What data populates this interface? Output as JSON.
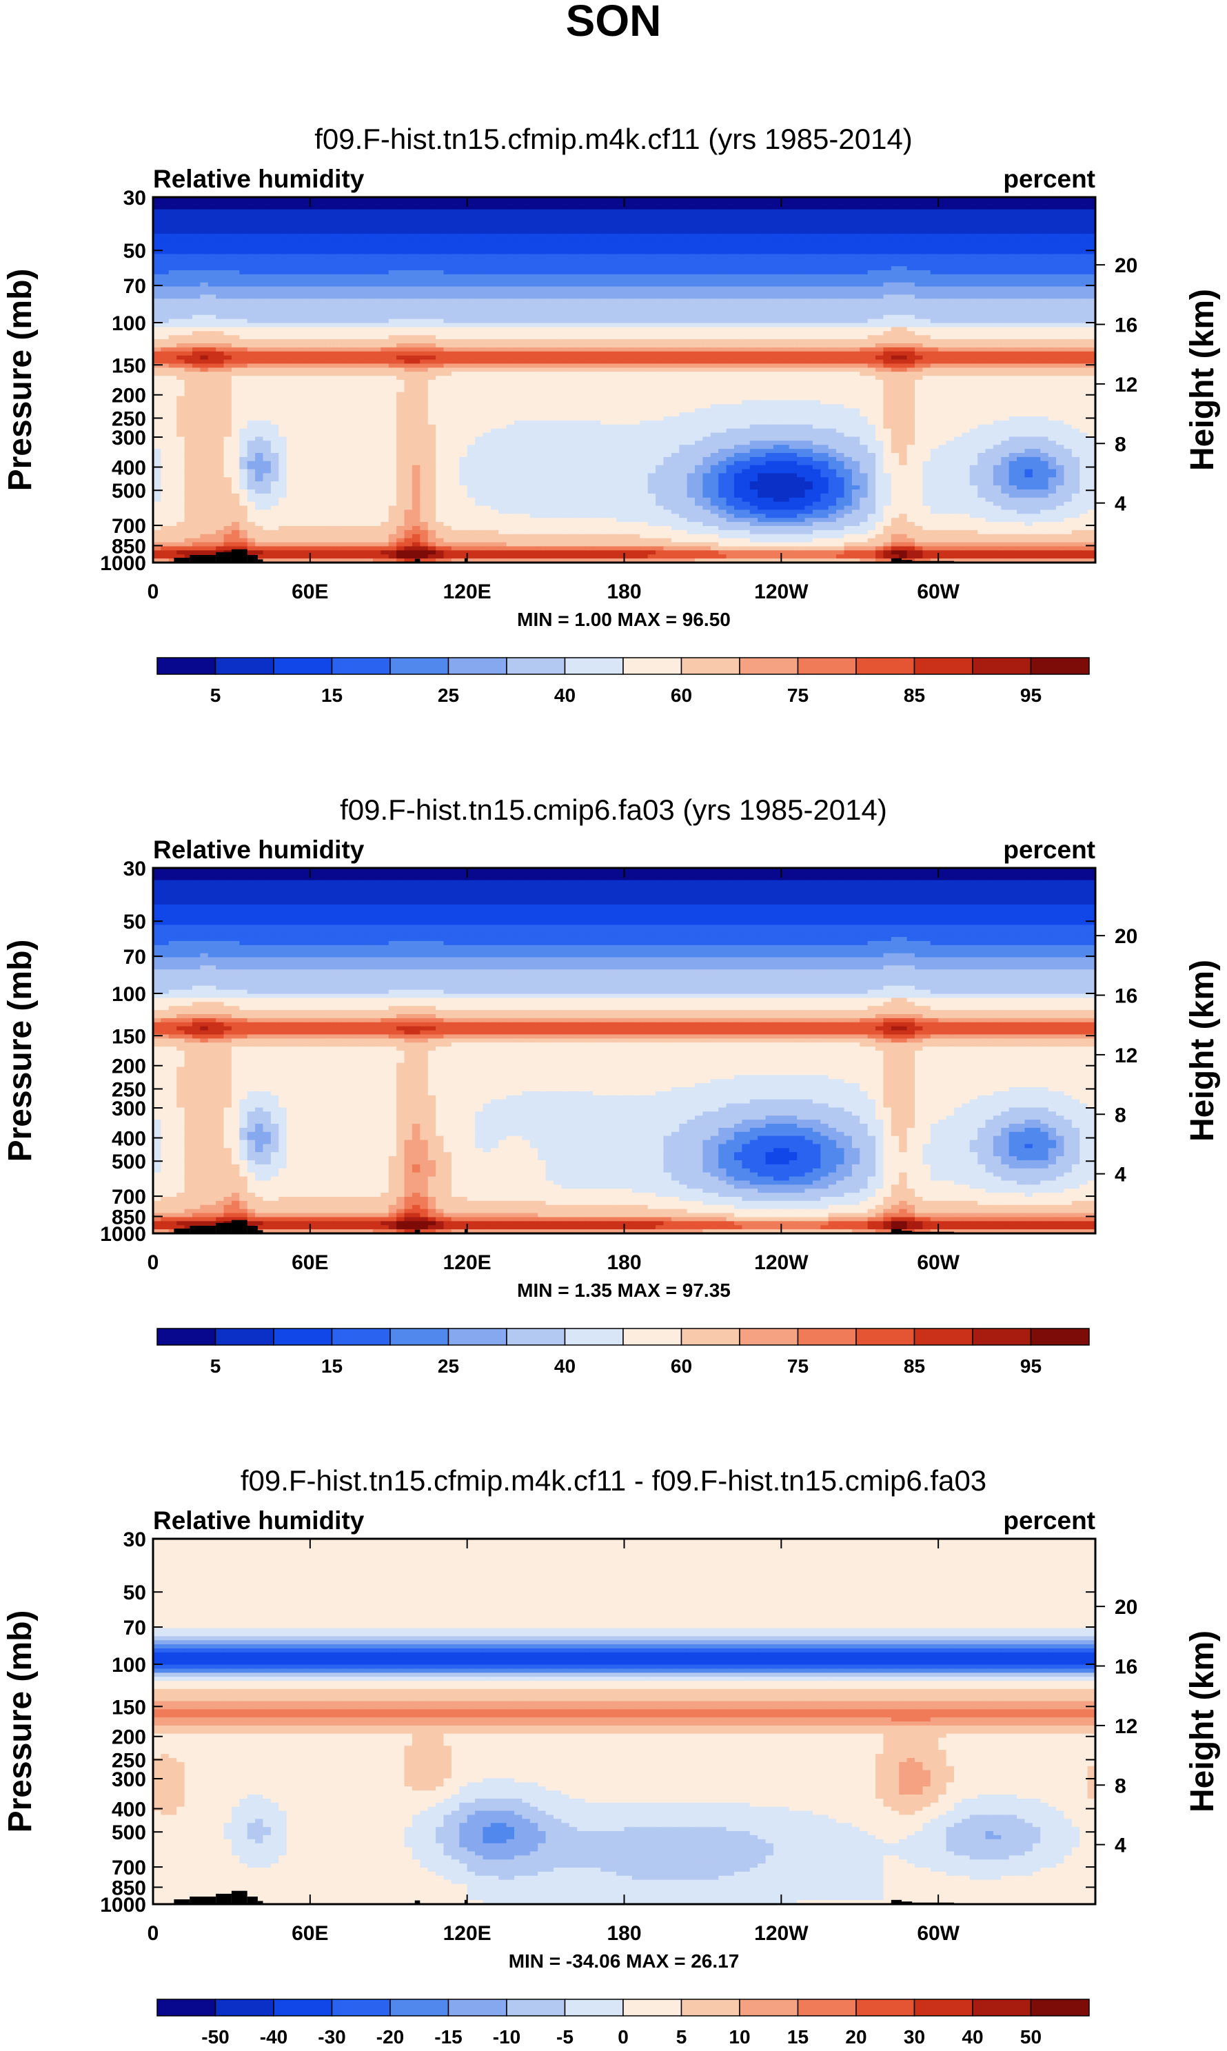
{
  "page": {
    "title": "SON"
  },
  "colors": {
    "abs_scale": [
      "#08088f",
      "#0a30c7",
      "#1147e8",
      "#2a63ef",
      "#5088ee",
      "#86a8ee",
      "#b4c9f1",
      "#d9e6f8",
      "#fdeddf",
      "#f8c9aa",
      "#f4a281",
      "#ef7b58",
      "#e55433",
      "#cb3118",
      "#a81c10",
      "#7d0b08"
    ],
    "diff_scale": [
      "#08088f",
      "#0a30c7",
      "#1147e8",
      "#2a63ef",
      "#5088ee",
      "#86a8ee",
      "#b4c9f1",
      "#d9e6f8",
      "#fdeddf",
      "#f8c9aa",
      "#f4a281",
      "#ef7b58",
      "#e55433",
      "#cb3118",
      "#a81c10",
      "#7d0b08"
    ]
  },
  "chart_data": [
    {
      "type": "heatmap",
      "title": "f09.F-hist.tn15.cfmip.m4k.cf11 (yrs 1985-2014)",
      "left_label": "Relative humidity",
      "right_label": "percent",
      "ylabel": "Pressure (mb)",
      "y2label": "Height (km)",
      "x_ticks": [
        "0",
        "60E",
        "120E",
        "180",
        "120W",
        "60W"
      ],
      "y_ticks": [
        "30",
        "50",
        "70",
        "100",
        "150",
        "200",
        "250",
        "300",
        "400",
        "500",
        "700",
        "850",
        "1000"
      ],
      "y2_ticks": [
        "20",
        "16",
        "12",
        "8",
        "4"
      ],
      "stats": "MIN =   1.00   MAX =  96.50",
      "colorbar_labels": [
        "5",
        "15",
        "25",
        "40",
        "60",
        "75",
        "85",
        "95"
      ],
      "xlim": [
        0,
        360
      ],
      "ylim_mb": [
        1000,
        30
      ]
    },
    {
      "type": "heatmap",
      "title": "f09.F-hist.tn15.cmip6.fa03 (yrs 1985-2014)",
      "left_label": "Relative humidity",
      "right_label": "percent",
      "ylabel": "Pressure (mb)",
      "y2label": "Height (km)",
      "x_ticks": [
        "0",
        "60E",
        "120E",
        "180",
        "120W",
        "60W"
      ],
      "y_ticks": [
        "30",
        "50",
        "70",
        "100",
        "150",
        "200",
        "250",
        "300",
        "400",
        "500",
        "700",
        "850",
        "1000"
      ],
      "y2_ticks": [
        "20",
        "16",
        "12",
        "8",
        "4"
      ],
      "stats": "MIN =   1.35   MAX =  97.35",
      "colorbar_labels": [
        "5",
        "15",
        "25",
        "40",
        "60",
        "75",
        "85",
        "95"
      ],
      "xlim": [
        0,
        360
      ],
      "ylim_mb": [
        1000,
        30
      ]
    },
    {
      "type": "heatmap",
      "title": "f09.F-hist.tn15.cfmip.m4k.cf11 - f09.F-hist.tn15.cmip6.fa03",
      "left_label": "Relative humidity",
      "right_label": "percent",
      "ylabel": "Pressure (mb)",
      "y2label": "Height (km)",
      "x_ticks": [
        "0",
        "60E",
        "120E",
        "180",
        "120W",
        "60W"
      ],
      "y_ticks": [
        "30",
        "50",
        "70",
        "100",
        "150",
        "200",
        "250",
        "300",
        "400",
        "500",
        "700",
        "850",
        "1000"
      ],
      "y2_ticks": [
        "20",
        "16",
        "12",
        "8",
        "4"
      ],
      "stats": "MIN = -34.06  MAX =  26.17",
      "colorbar_labels": [
        "-50",
        "-40",
        "-30",
        "-20",
        "-15",
        "-10",
        "-5",
        "0",
        "5",
        "10",
        "15",
        "20",
        "30",
        "40",
        "50"
      ],
      "xlim": [
        0,
        360
      ],
      "ylim_mb": [
        1000,
        30
      ]
    }
  ]
}
